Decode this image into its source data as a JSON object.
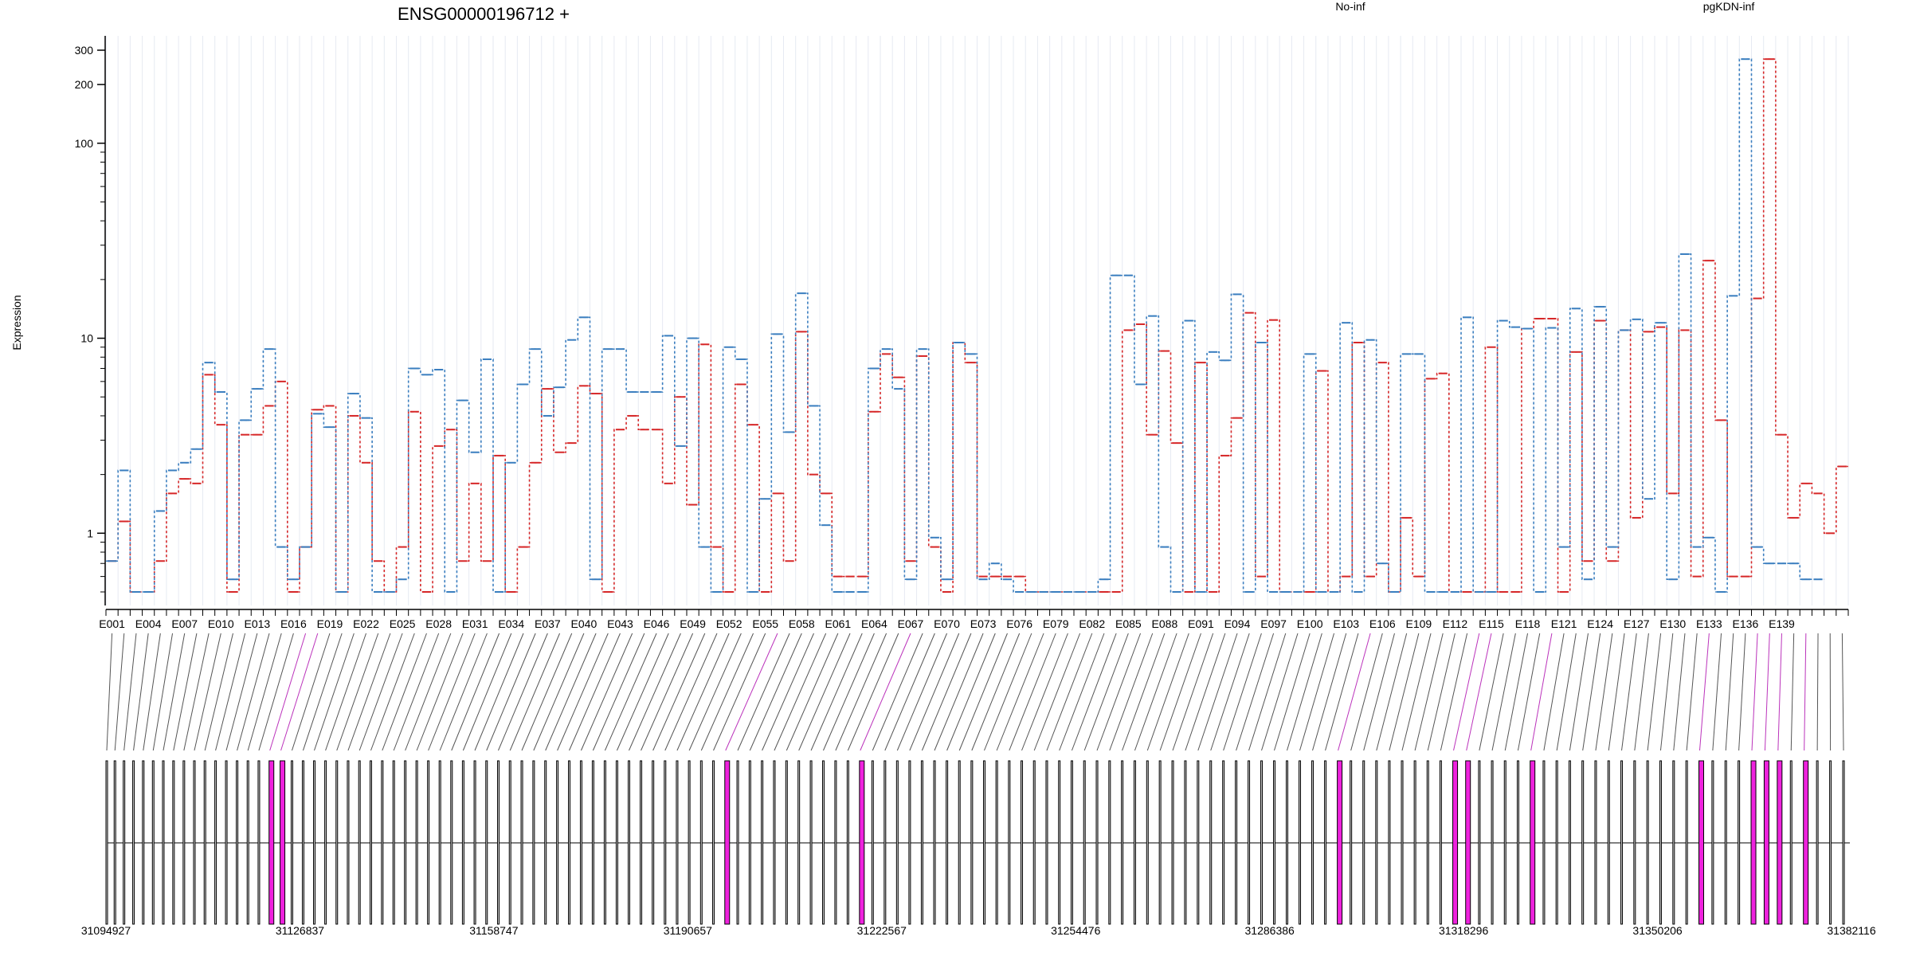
{
  "chart_data": {
    "type": "line",
    "title": "ENSG00000196712 +",
    "ylabel": "Expression",
    "y_scale": "log",
    "y_ticks": [
      1,
      10,
      100,
      200,
      300
    ],
    "series": [
      {
        "name": "No-inf",
        "color": "#d62728",
        "values": [
          0.72,
          1.15,
          0.5,
          0.5,
          0.72,
          1.6,
          1.9,
          1.8,
          6.5,
          3.6,
          0.5,
          3.2,
          3.2,
          4.5,
          6,
          0.5,
          0.85,
          4.3,
          4.5,
          0.5,
          4,
          2.3,
          0.72,
          0.5,
          0.85,
          4.2,
          0.5,
          2.8,
          3.4,
          0.72,
          1.8,
          0.72,
          2.5,
          0.5,
          0.85,
          2.3,
          5.5,
          2.6,
          2.9,
          5.7,
          5.2,
          0.5,
          3.4,
          4,
          3.4,
          3.4,
          1.8,
          5,
          1.4,
          9.3,
          0.85,
          0.5,
          5.8,
          3.6,
          0.5,
          1.6,
          0.72,
          10.8,
          2,
          1.6,
          0.6,
          0.6,
          0.6,
          4.2,
          8.3,
          6.3,
          0.72,
          8.1,
          0.85,
          0.5,
          9.5,
          7.5,
          0.6,
          0.6,
          0.6,
          0.6,
          0.5,
          0.5,
          0.5,
          0.5,
          0.5,
          0.5,
          0.5,
          0.5,
          11,
          11.8,
          3.2,
          8.6,
          2.9,
          0.5,
          7.5,
          0.5,
          2.5,
          3.9,
          13.5,
          0.6,
          12.4,
          0.5,
          0.5,
          0.5,
          6.8,
          0.5,
          0.6,
          9.5,
          0.6,
          7.5,
          0.5,
          1.2,
          0.6,
          6.2,
          6.6,
          0.5,
          0.5,
          0.5,
          9,
          0.5,
          0.5,
          11.2,
          12.6,
          12.6,
          0.5,
          8.5,
          0.72,
          12.3,
          0.72,
          11,
          1.2,
          10.8,
          11.4,
          1.6,
          11,
          0.6,
          25,
          3.8,
          0.6,
          0.6,
          16,
          270,
          3.2,
          1.2,
          1.8,
          1.6,
          1.0,
          2.2
        ]
      },
      {
        "name": "pgKDN-inf",
        "color": "#3a7ebf",
        "values": [
          0.72,
          2.1,
          0.5,
          0.5,
          1.3,
          2.1,
          2.3,
          2.7,
          7.5,
          5.3,
          0.58,
          3.8,
          5.5,
          8.8,
          0.85,
          0.58,
          0.85,
          4.1,
          3.5,
          0.5,
          5.2,
          3.9,
          0.5,
          0.5,
          0.58,
          7,
          6.5,
          6.9,
          0.5,
          4.8,
          2.6,
          7.8,
          0.5,
          2.3,
          5.8,
          8.8,
          4,
          5.6,
          9.8,
          12.8,
          0.58,
          8.8,
          8.8,
          5.3,
          5.3,
          5.3,
          10.3,
          2.8,
          10,
          0.85,
          0.5,
          9,
          7.8,
          0.5,
          1.5,
          10.5,
          3.3,
          17,
          4.5,
          1.1,
          0.5,
          0.5,
          0.5,
          7,
          8.8,
          5.5,
          0.58,
          8.8,
          0.95,
          0.58,
          9.5,
          8.3,
          0.58,
          0.7,
          0.58,
          0.5,
          0.5,
          0.5,
          0.5,
          0.5,
          0.5,
          0.5,
          0.58,
          21,
          21,
          5.8,
          13,
          0.85,
          0.5,
          12.3,
          0.5,
          8.5,
          7.7,
          16.8,
          0.5,
          9.5,
          0.5,
          0.5,
          0.5,
          8.3,
          0.5,
          0.5,
          12,
          0.5,
          9.8,
          0.7,
          0.5,
          8.3,
          8.3,
          0.5,
          0.5,
          0.5,
          12.8,
          0.5,
          0.5,
          12.3,
          11.4,
          11.2,
          0.5,
          11.3,
          0.85,
          14.2,
          0.58,
          14.5,
          0.85,
          11,
          12.5,
          1.5,
          12,
          0.58,
          27,
          0.85,
          0.95,
          0.5,
          16.5,
          270,
          0.85,
          0.7,
          0.7,
          0.7,
          0.58,
          0.58
        ]
      }
    ],
    "exon_tick_labels": [
      "E001",
      "E004",
      "E007",
      "E010",
      "E013",
      "E016",
      "E019",
      "E022",
      "E025",
      "E028",
      "E031",
      "E034",
      "E037",
      "E040",
      "E043",
      "E046",
      "E049",
      "E052",
      "E055",
      "E058",
      "E061",
      "E064",
      "E067",
      "E070",
      "E073",
      "E076",
      "E079",
      "E082",
      "E085",
      "E088",
      "E091",
      "E094",
      "E097",
      "E100",
      "E103",
      "E106",
      "E109",
      "E112",
      "E115",
      "E118",
      "E121",
      "E124",
      "E127",
      "E130",
      "E133",
      "E136",
      "E139"
    ],
    "genomic_coordinates": {
      "start": 31094927,
      "end": 31382116,
      "tick_labels": [
        "31094927",
        "31126837",
        "31158747",
        "31190657",
        "31222567",
        "31254476",
        "31286386",
        "31318296",
        "31350206",
        "31382116"
      ]
    },
    "legend_placement": "top-right",
    "significant_color": "#ee22dd",
    "exon_fill": "#d3d3d3"
  }
}
